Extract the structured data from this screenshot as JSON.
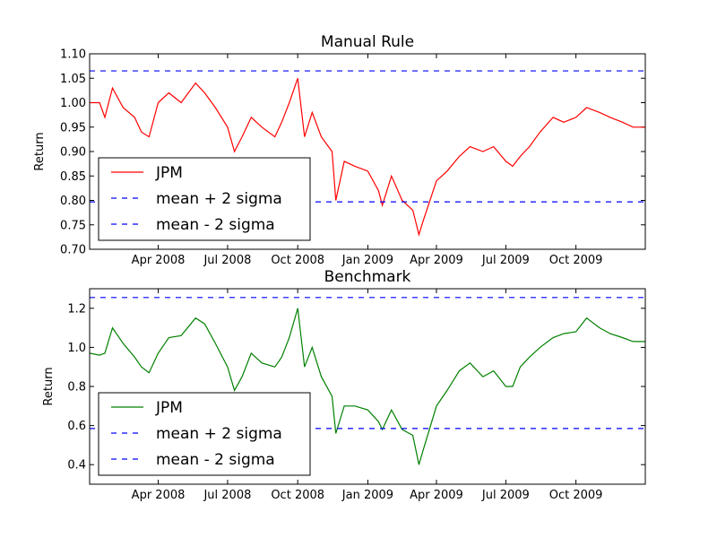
{
  "chart_data": [
    {
      "type": "line",
      "title": "Manual Rule",
      "xlabel": "",
      "ylabel": "Return",
      "ylim": [
        0.7,
        1.1
      ],
      "yticks": [
        "0.70",
        "0.75",
        "0.80",
        "0.85",
        "0.90",
        "0.95",
        "1.00",
        "1.05",
        "1.10"
      ],
      "xlim": [
        "2008-01-02",
        "2009-12-31"
      ],
      "xticks": [
        {
          "date": "2008-04-01",
          "label": "Apr 2008"
        },
        {
          "date": "2008-07-01",
          "label": "Jul 2008"
        },
        {
          "date": "2008-10-01",
          "label": "Oct 2008"
        },
        {
          "date": "2009-01-01",
          "label": "Jan 2009"
        },
        {
          "date": "2009-04-01",
          "label": "Apr 2009"
        },
        {
          "date": "2009-07-01",
          "label": "Jul 2009"
        },
        {
          "date": "2009-10-01",
          "label": "Oct 2009"
        }
      ],
      "legend_position": "lower-left",
      "legend": [
        "JPM",
        "mean + 2 sigma",
        "mean - 2 sigma"
      ],
      "series": [
        {
          "name": "JPM",
          "color": "#ff0000",
          "x": [
            "2008-01-02",
            "2008-01-15",
            "2008-01-22",
            "2008-02-01",
            "2008-02-15",
            "2008-03-01",
            "2008-03-10",
            "2008-03-20",
            "2008-04-01",
            "2008-04-15",
            "2008-05-01",
            "2008-05-20",
            "2008-06-01",
            "2008-06-15",
            "2008-07-01",
            "2008-07-10",
            "2008-07-20",
            "2008-08-01",
            "2008-08-15",
            "2008-09-01",
            "2008-09-10",
            "2008-09-20",
            "2008-10-01",
            "2008-10-10",
            "2008-10-20",
            "2008-11-01",
            "2008-11-15",
            "2008-11-20",
            "2008-12-01",
            "2008-12-15",
            "2009-01-01",
            "2009-01-15",
            "2009-01-20",
            "2009-02-01",
            "2009-02-15",
            "2009-03-01",
            "2009-03-09",
            "2009-03-15",
            "2009-04-01",
            "2009-04-15",
            "2009-05-01",
            "2009-05-15",
            "2009-06-01",
            "2009-06-15",
            "2009-07-01",
            "2009-07-10",
            "2009-07-20",
            "2009-08-01",
            "2009-08-15",
            "2009-09-01",
            "2009-09-15",
            "2009-10-01",
            "2009-10-15",
            "2009-11-01",
            "2009-11-15",
            "2009-12-01",
            "2009-12-15",
            "2009-12-31"
          ],
          "y": [
            1.0,
            1.0,
            0.97,
            1.03,
            0.99,
            0.97,
            0.94,
            0.93,
            1.0,
            1.02,
            1.0,
            1.04,
            1.02,
            0.99,
            0.95,
            0.9,
            0.93,
            0.97,
            0.95,
            0.93,
            0.96,
            1.0,
            1.05,
            0.93,
            0.98,
            0.93,
            0.9,
            0.8,
            0.88,
            0.87,
            0.86,
            0.82,
            0.79,
            0.85,
            0.8,
            0.78,
            0.73,
            0.76,
            0.84,
            0.86,
            0.89,
            0.91,
            0.9,
            0.91,
            0.88,
            0.87,
            0.89,
            0.91,
            0.94,
            0.97,
            0.96,
            0.97,
            0.99,
            0.98,
            0.97,
            0.96,
            0.95,
            0.95
          ]
        },
        {
          "name": "mean + 2 sigma",
          "color": "#0000ff",
          "y": 1.065
        },
        {
          "name": "mean - 2 sigma",
          "color": "#0000ff",
          "y": 0.797
        }
      ]
    },
    {
      "type": "line",
      "title": "Benchmark",
      "xlabel": "",
      "ylabel": "Return",
      "ylim": [
        0.3,
        1.3
      ],
      "yticks": [
        "0.4",
        "0.6",
        "0.8",
        "1.0",
        "1.2"
      ],
      "xlim": [
        "2008-01-02",
        "2009-12-31"
      ],
      "xticks": [
        {
          "date": "2008-04-01",
          "label": "Apr 2008"
        },
        {
          "date": "2008-07-01",
          "label": "Jul 2008"
        },
        {
          "date": "2008-10-01",
          "label": "Oct 2008"
        },
        {
          "date": "2009-01-01",
          "label": "Jan 2009"
        },
        {
          "date": "2009-04-01",
          "label": "Apr 2009"
        },
        {
          "date": "2009-07-01",
          "label": "Jul 2009"
        },
        {
          "date": "2009-10-01",
          "label": "Oct 2009"
        }
      ],
      "legend_position": "lower-left",
      "legend": [
        "JPM",
        "mean + 2 sigma",
        "mean - 2 sigma"
      ],
      "series": [
        {
          "name": "JPM",
          "color": "#008000",
          "x": [
            "2008-01-02",
            "2008-01-15",
            "2008-01-22",
            "2008-02-01",
            "2008-02-15",
            "2008-03-01",
            "2008-03-10",
            "2008-03-20",
            "2008-04-01",
            "2008-04-15",
            "2008-05-01",
            "2008-05-20",
            "2008-06-01",
            "2008-06-15",
            "2008-07-01",
            "2008-07-10",
            "2008-07-20",
            "2008-08-01",
            "2008-08-15",
            "2008-09-01",
            "2008-09-10",
            "2008-09-20",
            "2008-10-01",
            "2008-10-10",
            "2008-10-20",
            "2008-11-01",
            "2008-11-15",
            "2008-11-20",
            "2008-12-01",
            "2008-12-15",
            "2009-01-01",
            "2009-01-15",
            "2009-01-20",
            "2009-02-01",
            "2009-02-15",
            "2009-03-01",
            "2009-03-09",
            "2009-03-15",
            "2009-04-01",
            "2009-04-15",
            "2009-05-01",
            "2009-05-15",
            "2009-06-01",
            "2009-06-15",
            "2009-07-01",
            "2009-07-10",
            "2009-07-20",
            "2009-08-01",
            "2009-08-15",
            "2009-09-01",
            "2009-09-15",
            "2009-10-01",
            "2009-10-15",
            "2009-11-01",
            "2009-11-15",
            "2009-12-01",
            "2009-12-15",
            "2009-12-31"
          ],
          "y": [
            0.97,
            0.96,
            0.97,
            1.1,
            1.02,
            0.95,
            0.9,
            0.87,
            0.97,
            1.05,
            1.06,
            1.15,
            1.12,
            1.02,
            0.9,
            0.78,
            0.85,
            0.97,
            0.92,
            0.9,
            0.95,
            1.05,
            1.2,
            0.9,
            1.0,
            0.85,
            0.75,
            0.56,
            0.7,
            0.7,
            0.68,
            0.62,
            0.58,
            0.68,
            0.58,
            0.55,
            0.4,
            0.48,
            0.7,
            0.78,
            0.88,
            0.92,
            0.85,
            0.88,
            0.8,
            0.8,
            0.9,
            0.95,
            1.0,
            1.05,
            1.07,
            1.08,
            1.15,
            1.1,
            1.07,
            1.05,
            1.03,
            1.03
          ]
        },
        {
          "name": "mean + 2 sigma",
          "color": "#0000ff",
          "y": 1.255
        },
        {
          "name": "mean - 2 sigma",
          "color": "#0000ff",
          "y": 0.585
        }
      ]
    }
  ]
}
